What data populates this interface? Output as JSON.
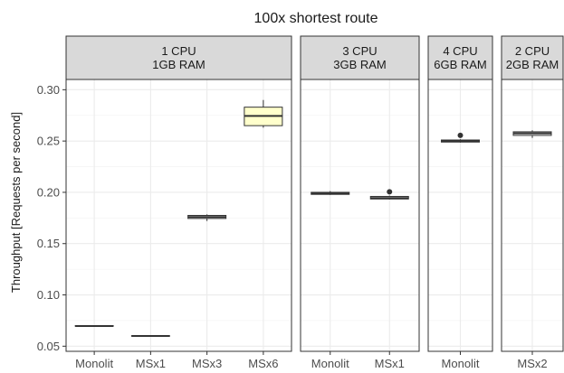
{
  "chart_data": {
    "type": "boxplot",
    "title": "100x shortest route",
    "ylabel": "Throughput [Requests per second]",
    "xlabel": "",
    "ylim": [
      0.045,
      0.31
    ],
    "yticks": [
      0.05,
      0.1,
      0.15,
      0.2,
      0.25,
      0.3
    ],
    "ytick_labels": [
      "0.05",
      "0.10",
      "0.15",
      "0.20",
      "0.25",
      "0.30"
    ],
    "grid": true,
    "highlight_fill": "#ffffcc",
    "box_fill": "#ffffff",
    "strip_fill": "#d9d9d9",
    "panels": [
      {
        "strip": [
          "1 CPU",
          "1GB RAM"
        ],
        "boxes": [
          {
            "category": "Monolit",
            "min": 0.0695,
            "q1": 0.0695,
            "median": 0.0697,
            "q3": 0.07,
            "max": 0.0702,
            "outliers": [],
            "highlight": false
          },
          {
            "category": "MSx1",
            "min": 0.0598,
            "q1": 0.0598,
            "median": 0.06,
            "q3": 0.0602,
            "max": 0.0603,
            "outliers": [],
            "highlight": false
          },
          {
            "category": "MSx3",
            "min": 0.172,
            "q1": 0.1745,
            "median": 0.176,
            "q3": 0.1775,
            "max": 0.1785,
            "outliers": [],
            "highlight": false
          },
          {
            "category": "MSx6",
            "min": 0.263,
            "q1": 0.265,
            "median": 0.2745,
            "q3": 0.283,
            "max": 0.29,
            "outliers": [],
            "highlight": true
          }
        ]
      },
      {
        "strip": [
          "3 CPU",
          "3GB RAM"
        ],
        "boxes": [
          {
            "category": "Monolit",
            "min": 0.1975,
            "q1": 0.198,
            "median": 0.199,
            "q3": 0.2,
            "max": 0.2012,
            "outliers": [],
            "highlight": false
          },
          {
            "category": "MSx1",
            "min": 0.193,
            "q1": 0.1935,
            "median": 0.1945,
            "q3": 0.196,
            "max": 0.1968,
            "outliers": [
              0.2005
            ],
            "highlight": false
          }
        ]
      },
      {
        "strip": [
          "4 CPU",
          "6GB RAM"
        ],
        "boxes": [
          {
            "category": "Monolit",
            "min": 0.2485,
            "q1": 0.249,
            "median": 0.25,
            "q3": 0.251,
            "max": 0.2518,
            "outliers": [
              0.2555
            ],
            "highlight": false
          }
        ]
      },
      {
        "strip": [
          "2 CPU",
          "2GB RAM"
        ],
        "boxes": [
          {
            "category": "MSx2",
            "min": 0.253,
            "q1": 0.2555,
            "median": 0.2575,
            "q3": 0.259,
            "max": 0.2605,
            "outliers": [],
            "highlight": false
          }
        ]
      }
    ]
  }
}
